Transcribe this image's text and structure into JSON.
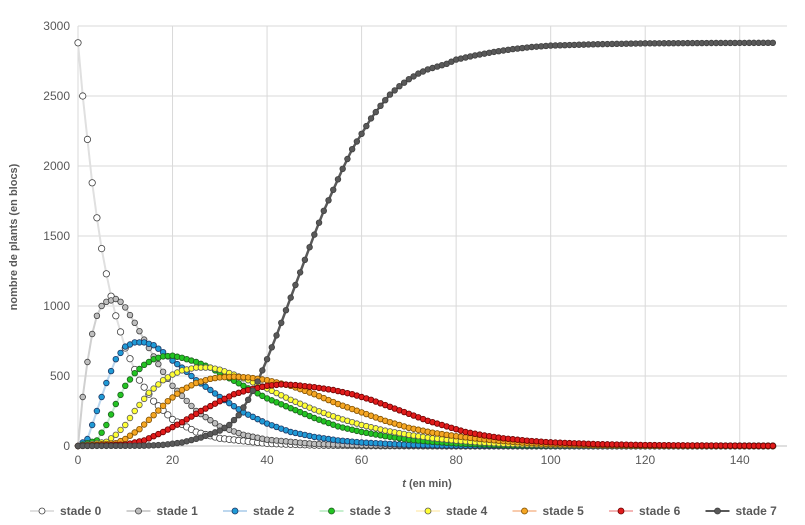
{
  "chart_data": {
    "type": "scatter",
    "title": "",
    "xlabel_italic": "t",
    "xlabel_rest": " (en min)",
    "ylabel": "nombre de plants (en blocs)",
    "xlim": [
      0,
      150
    ],
    "ylim": [
      0,
      3000
    ],
    "x_ticks": [
      "0",
      "20",
      "40",
      "60",
      "80",
      "100",
      "120",
      "140"
    ],
    "x_tick_values": [
      0,
      20,
      40,
      60,
      80,
      100,
      120,
      140
    ],
    "y_ticks": [
      "0",
      "500",
      "1000",
      "1500",
      "2000",
      "2500",
      "3000"
    ],
    "y_tick_values": [
      0,
      500,
      1000,
      1500,
      2000,
      2500,
      3000
    ],
    "grid": true,
    "legend_position": "bottom",
    "x_range": [
      0,
      147
    ],
    "series": [
      {
        "name": "stade 0",
        "color": "#ffffff",
        "stroke": "#404040",
        "line": "#e0e0e0",
        "marker_size": "large",
        "points": [
          [
            0,
            2880
          ],
          [
            1,
            2500
          ],
          [
            2,
            2190
          ],
          [
            3,
            1880
          ],
          [
            4,
            1630
          ],
          [
            5,
            1410
          ],
          [
            6,
            1230
          ],
          [
            7,
            1070
          ],
          [
            8,
            930
          ],
          [
            10,
            700
          ],
          [
            13,
            470
          ],
          [
            16,
            320
          ],
          [
            20,
            190
          ],
          [
            25,
            100
          ],
          [
            30,
            55
          ],
          [
            40,
            18
          ],
          [
            50,
            6
          ],
          [
            60,
            2
          ],
          [
            80,
            0
          ],
          [
            147,
            0
          ]
        ]
      },
      {
        "name": "stade 1",
        "color": "#bfbfbf",
        "stroke": "#404040",
        "line": "#d0d0d0",
        "marker_size": "small",
        "points": [
          [
            0,
            0
          ],
          [
            1,
            350
          ],
          [
            2,
            600
          ],
          [
            3,
            800
          ],
          [
            4,
            930
          ],
          [
            5,
            1000
          ],
          [
            6,
            1030
          ],
          [
            7,
            1040
          ],
          [
            8,
            1050
          ],
          [
            9,
            1030
          ],
          [
            10,
            990
          ],
          [
            12,
            880
          ],
          [
            14,
            760
          ],
          [
            16,
            640
          ],
          [
            18,
            530
          ],
          [
            20,
            430
          ],
          [
            25,
            250
          ],
          [
            30,
            140
          ],
          [
            35,
            80
          ],
          [
            40,
            45
          ],
          [
            50,
            15
          ],
          [
            60,
            5
          ],
          [
            80,
            0
          ],
          [
            147,
            0
          ]
        ]
      },
      {
        "name": "stade 2",
        "color": "#1f9ad6",
        "stroke": "#1f3864",
        "line": "#bdd7ee",
        "marker_size": "small",
        "points": [
          [
            0,
            0
          ],
          [
            2,
            50
          ],
          [
            4,
            250
          ],
          [
            6,
            450
          ],
          [
            8,
            620
          ],
          [
            10,
            710
          ],
          [
            12,
            740
          ],
          [
            14,
            740
          ],
          [
            16,
            720
          ],
          [
            18,
            670
          ],
          [
            20,
            610
          ],
          [
            22,
            560
          ],
          [
            25,
            470
          ],
          [
            28,
            400
          ],
          [
            30,
            350
          ],
          [
            35,
            240
          ],
          [
            40,
            160
          ],
          [
            45,
            100
          ],
          [
            50,
            65
          ],
          [
            55,
            40
          ],
          [
            60,
            25
          ],
          [
            70,
            8
          ],
          [
            80,
            3
          ],
          [
            100,
            0
          ],
          [
            147,
            0
          ]
        ]
      },
      {
        "name": "stade 3",
        "color": "#22c422",
        "stroke": "#1e5d1e",
        "line": "#c6efce",
        "marker_size": "small",
        "points": [
          [
            0,
            0
          ],
          [
            4,
            40
          ],
          [
            6,
            150
          ],
          [
            8,
            300
          ],
          [
            10,
            430
          ],
          [
            12,
            520
          ],
          [
            14,
            580
          ],
          [
            16,
            620
          ],
          [
            18,
            640
          ],
          [
            20,
            645
          ],
          [
            22,
            630
          ],
          [
            25,
            600
          ],
          [
            28,
            560
          ],
          [
            30,
            520
          ],
          [
            35,
            430
          ],
          [
            40,
            340
          ],
          [
            45,
            270
          ],
          [
            50,
            200
          ],
          [
            55,
            140
          ],
          [
            60,
            100
          ],
          [
            65,
            70
          ],
          [
            70,
            45
          ],
          [
            75,
            30
          ],
          [
            80,
            18
          ],
          [
            90,
            6
          ],
          [
            100,
            2
          ],
          [
            147,
            0
          ]
        ]
      },
      {
        "name": "stade 4",
        "color": "#ffff33",
        "stroke": "#595959",
        "line": "#fff2cc",
        "marker_size": "small",
        "points": [
          [
            0,
            0
          ],
          [
            6,
            30
          ],
          [
            8,
            80
          ],
          [
            10,
            150
          ],
          [
            12,
            250
          ],
          [
            15,
            380
          ],
          [
            18,
            470
          ],
          [
            20,
            510
          ],
          [
            22,
            540
          ],
          [
            25,
            560
          ],
          [
            28,
            560
          ],
          [
            30,
            545
          ],
          [
            33,
            510
          ],
          [
            36,
            470
          ],
          [
            40,
            410
          ],
          [
            45,
            330
          ],
          [
            50,
            260
          ],
          [
            55,
            200
          ],
          [
            60,
            150
          ],
          [
            65,
            110
          ],
          [
            70,
            80
          ],
          [
            75,
            55
          ],
          [
            80,
            38
          ],
          [
            85,
            25
          ],
          [
            90,
            16
          ],
          [
            100,
            6
          ],
          [
            110,
            2
          ],
          [
            147,
            0
          ]
        ]
      },
      {
        "name": "stade 5",
        "color": "#f5a623",
        "stroke": "#7f4f00",
        "line": "#f8cbad",
        "marker_size": "small",
        "points": [
          [
            0,
            0
          ],
          [
            8,
            20
          ],
          [
            10,
            50
          ],
          [
            13,
            120
          ],
          [
            16,
            220
          ],
          [
            19,
            320
          ],
          [
            22,
            400
          ],
          [
            25,
            450
          ],
          [
            28,
            480
          ],
          [
            30,
            490
          ],
          [
            33,
            495
          ],
          [
            36,
            490
          ],
          [
            40,
            470
          ],
          [
            45,
            430
          ],
          [
            50,
            370
          ],
          [
            55,
            300
          ],
          [
            60,
            240
          ],
          [
            65,
            180
          ],
          [
            70,
            130
          ],
          [
            75,
            95
          ],
          [
            80,
            70
          ],
          [
            85,
            50
          ],
          [
            90,
            35
          ],
          [
            95,
            22
          ],
          [
            100,
            14
          ],
          [
            110,
            6
          ],
          [
            120,
            2
          ],
          [
            147,
            0
          ]
        ]
      },
      {
        "name": "stade 6",
        "color": "#e01b1b",
        "stroke": "#6b0000",
        "line": "#f4b6b6",
        "marker_size": "small",
        "points": [
          [
            0,
            0
          ],
          [
            10,
            10
          ],
          [
            14,
            40
          ],
          [
            18,
            100
          ],
          [
            22,
            170
          ],
          [
            26,
            250
          ],
          [
            30,
            320
          ],
          [
            33,
            370
          ],
          [
            36,
            400
          ],
          [
            40,
            430
          ],
          [
            43,
            440
          ],
          [
            46,
            435
          ],
          [
            50,
            420
          ],
          [
            54,
            400
          ],
          [
            58,
            370
          ],
          [
            62,
            330
          ],
          [
            66,
            280
          ],
          [
            70,
            230
          ],
          [
            74,
            180
          ],
          [
            78,
            140
          ],
          [
            82,
            100
          ],
          [
            86,
            75
          ],
          [
            90,
            55
          ],
          [
            95,
            38
          ],
          [
            100,
            26
          ],
          [
            110,
            13
          ],
          [
            120,
            7
          ],
          [
            130,
            4
          ],
          [
            140,
            2
          ],
          [
            147,
            1
          ]
        ]
      },
      {
        "name": "stade 7",
        "color": "#595959",
        "stroke": "#404040",
        "line": "#595959",
        "marker_size": "small",
        "points": [
          [
            0,
            0
          ],
          [
            14,
            2
          ],
          [
            18,
            8
          ],
          [
            22,
            25
          ],
          [
            26,
            60
          ],
          [
            30,
            110
          ],
          [
            32,
            150
          ],
          [
            34,
            220
          ],
          [
            36,
            330
          ],
          [
            38,
            460
          ],
          [
            40,
            620
          ],
          [
            42,
            790
          ],
          [
            44,
            970
          ],
          [
            46,
            1150
          ],
          [
            48,
            1330
          ],
          [
            50,
            1510
          ],
          [
            52,
            1680
          ],
          [
            54,
            1830
          ],
          [
            56,
            1980
          ],
          [
            58,
            2120
          ],
          [
            60,
            2230
          ],
          [
            62,
            2340
          ],
          [
            64,
            2430
          ],
          [
            66,
            2510
          ],
          [
            68,
            2570
          ],
          [
            70,
            2620
          ],
          [
            72,
            2660
          ],
          [
            74,
            2690
          ],
          [
            76,
            2710
          ],
          [
            78,
            2730
          ],
          [
            80,
            2760
          ],
          [
            84,
            2790
          ],
          [
            88,
            2815
          ],
          [
            92,
            2835
          ],
          [
            96,
            2850
          ],
          [
            100,
            2860
          ],
          [
            110,
            2870
          ],
          [
            120,
            2876
          ],
          [
            130,
            2878
          ],
          [
            147,
            2880
          ]
        ]
      }
    ]
  }
}
